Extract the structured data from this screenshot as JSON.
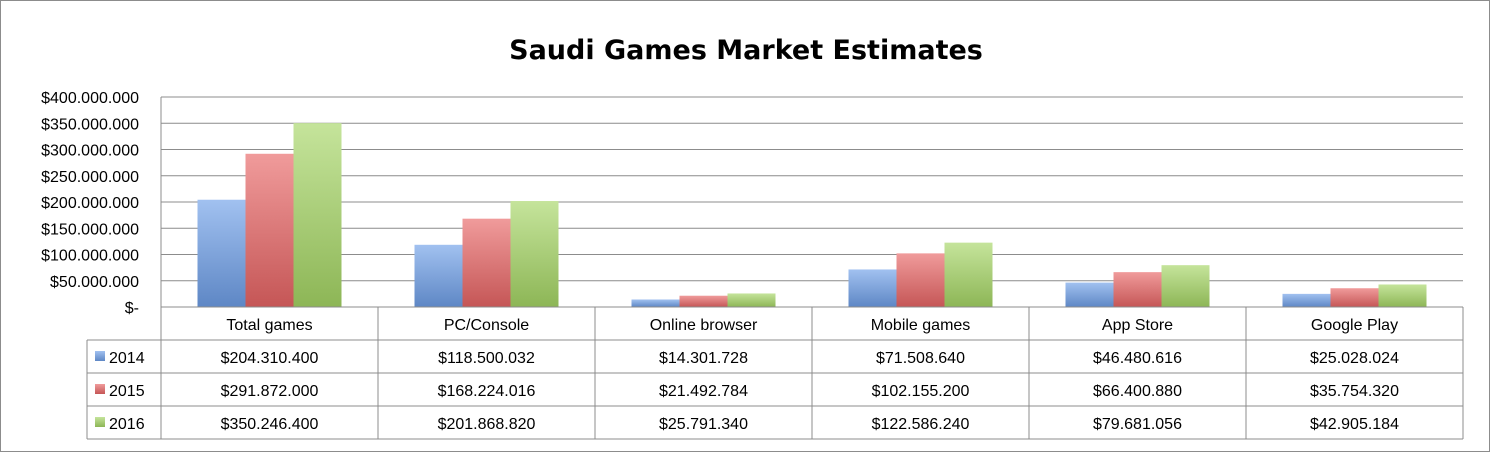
{
  "chart_data": {
    "type": "bar",
    "title": "Saudi Games Market Estimates",
    "categories": [
      "Total games",
      "PC/Console",
      "Online browser",
      "Mobile games",
      "App Store",
      "Google Play"
    ],
    "series": [
      {
        "name": "2014",
        "color": "#6e9fe8",
        "values": [
          204310400,
          118500032,
          14301728,
          71508640,
          46480616,
          25028024
        ],
        "labels": [
          "$204.310.400",
          "$118.500.032",
          "$14.301.728",
          "$71.508.640",
          "$46.480.616",
          "$25.028.024"
        ]
      },
      {
        "name": "2015",
        "color": "#e86565",
        "values": [
          291872000,
          168224016,
          21492784,
          102155200,
          66400880,
          35754320
        ],
        "labels": [
          "$291.872.000",
          "$168.224.016",
          "$21.492.784",
          "$102.155.200",
          "$66.400.880",
          "$35.754.320"
        ]
      },
      {
        "name": "2016",
        "color": "#a6d665",
        "values": [
          350246400,
          201868820,
          25791340,
          122586240,
          79681056,
          42905184
        ],
        "labels": [
          "$350.246.400",
          "$201.868.820",
          "$25.791.340",
          "$122.586.240",
          "$79.681.056",
          "$42.905.184"
        ]
      }
    ],
    "ylim": [
      0,
      400000000
    ],
    "yticks": [
      {
        "value": 0,
        "label": "$-"
      },
      {
        "value": 50000000,
        "label": "$50.000.000"
      },
      {
        "value": 100000000,
        "label": "$100.000.000"
      },
      {
        "value": 150000000,
        "label": "$150.000.000"
      },
      {
        "value": 200000000,
        "label": "$200.000.000"
      },
      {
        "value": 250000000,
        "label": "$250.000.000"
      },
      {
        "value": 300000000,
        "label": "$300.000.000"
      },
      {
        "value": 350000000,
        "label": "$350.000.000"
      },
      {
        "value": 400000000,
        "label": "$400.000.000"
      }
    ],
    "grid": true,
    "legend": "data-table"
  }
}
